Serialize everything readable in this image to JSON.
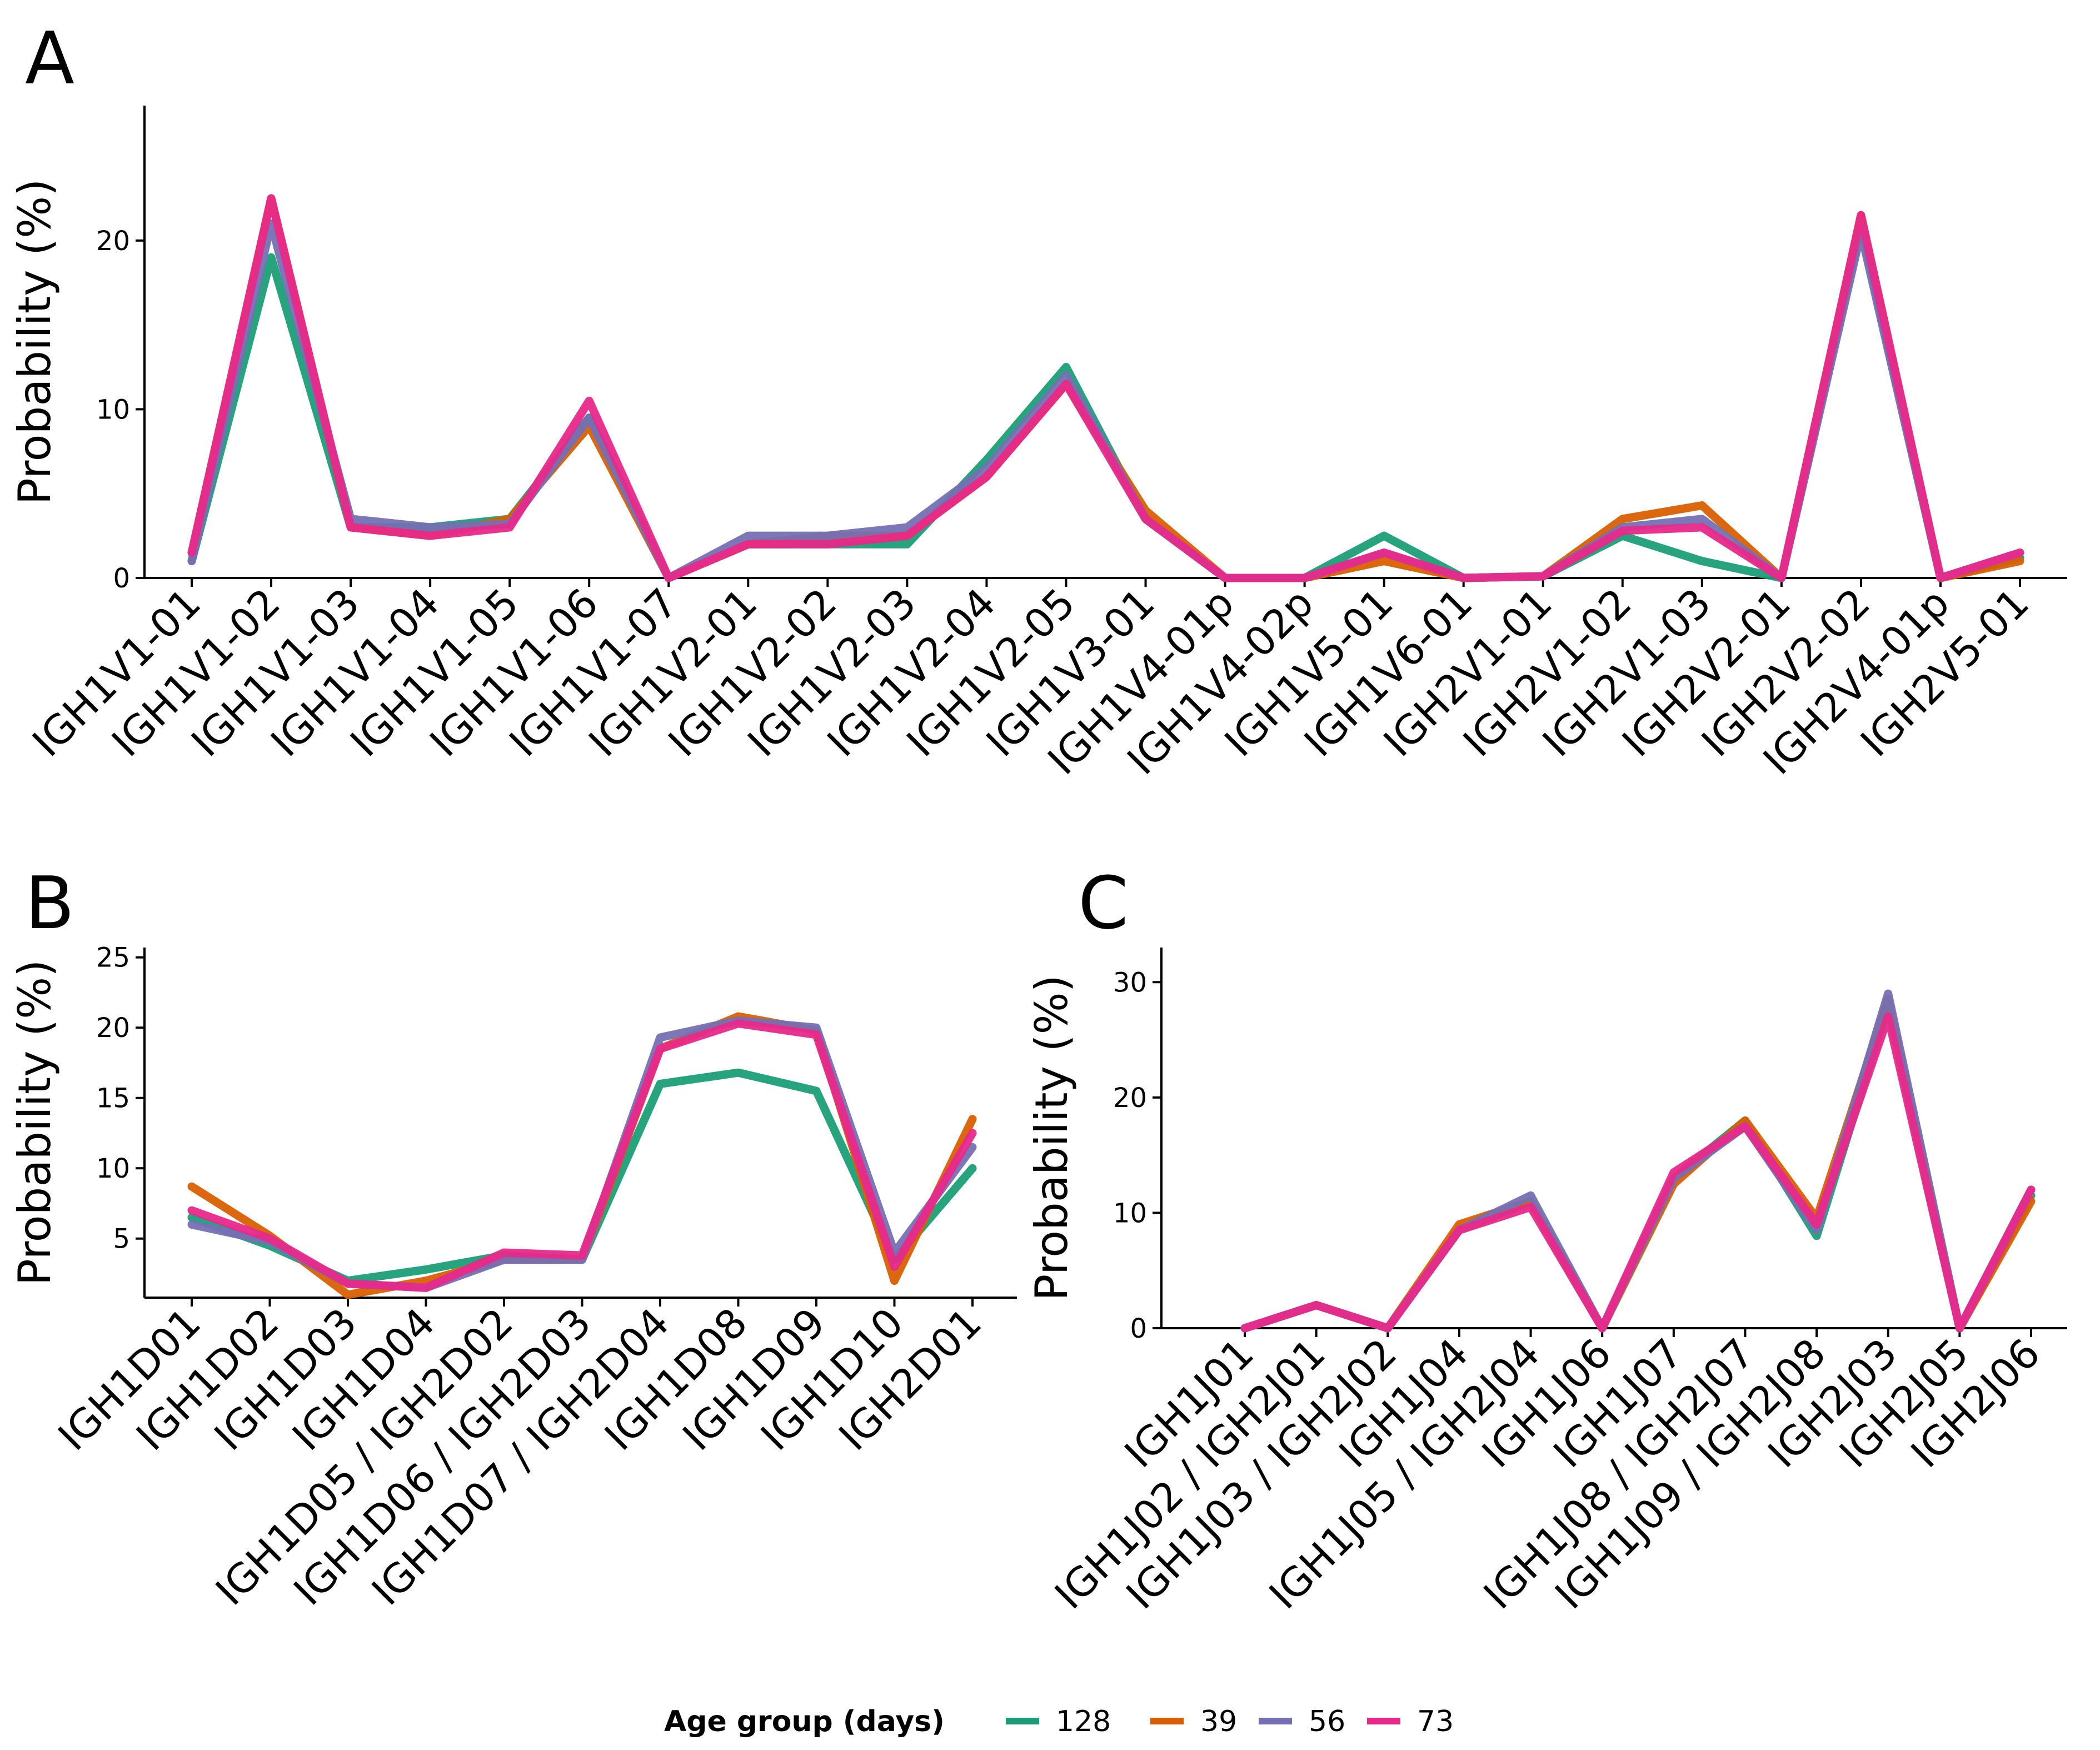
{
  "colors": {
    "128": "#1b9e77",
    "39": "#d95f02",
    "56": "#7570b3",
    "73": "#e7298a"
  },
  "legend": {
    "title": "Age group (days)",
    "groups": [
      "128",
      "39",
      "56",
      "73"
    ]
  },
  "chart_data": [
    {
      "panel": "A",
      "type": "line",
      "ylabel": "Probability (%)",
      "yticks": [
        0,
        10,
        20
      ],
      "ylim": [
        0,
        28
      ],
      "categories": [
        "IGH1V1-01",
        "IGH1V1-02",
        "IGH1V1-03",
        "IGH1V1-04",
        "IGH1V1-05",
        "IGH1V1-06",
        "IGH1V1-07",
        "IGH1V2-01",
        "IGH1V2-02",
        "IGH1V2-03",
        "IGH1V2-04",
        "IGH1V2-05",
        "IGH1V3-01",
        "IGH1V4-01p",
        "IGH1V4-02p",
        "IGH1V5-01",
        "IGH1V6-01",
        "IGH2V1-01",
        "IGH2V1-02",
        "IGH2V1-03",
        "IGH2V2-01",
        "IGH2V2-02",
        "IGH2V4-01p",
        "IGH2V5-01"
      ],
      "series": [
        {
          "name": "128",
          "values": [
            1.0,
            19.0,
            3.0,
            3.0,
            3.5,
            9.5,
            0,
            2.0,
            2.0,
            2.0,
            7.0,
            12.5,
            3.5,
            0,
            0,
            2.5,
            0,
            0.1,
            2.5,
            1.0,
            0,
            21.0,
            0,
            1.2
          ]
        },
        {
          "name": "39",
          "values": [
            1.5,
            22.5,
            3.0,
            2.5,
            3.5,
            9.0,
            0,
            2.0,
            2.5,
            2.5,
            6.0,
            11.5,
            4.0,
            0,
            0,
            1.0,
            0,
            0.1,
            3.5,
            4.3,
            0,
            21.5,
            0,
            1.0
          ]
        },
        {
          "name": "56",
          "values": [
            1.0,
            21.0,
            3.5,
            3.0,
            3.2,
            9.5,
            0,
            2.5,
            2.5,
            3.0,
            6.5,
            12.0,
            3.5,
            0,
            0,
            1.5,
            0,
            0.1,
            3.0,
            3.5,
            0,
            20.5,
            0,
            1.5
          ]
        },
        {
          "name": "73",
          "values": [
            1.5,
            22.5,
            3.0,
            2.5,
            3.0,
            10.5,
            0,
            2.0,
            2.0,
            2.5,
            6.0,
            11.5,
            3.5,
            0,
            0,
            1.5,
            0,
            0.1,
            2.8,
            3.0,
            0,
            21.5,
            0,
            1.5
          ]
        }
      ]
    },
    {
      "panel": "B",
      "type": "line",
      "ylabel": "Probability (%)",
      "yticks": [
        5,
        10,
        15,
        20,
        25
      ],
      "ylim": [
        0.8,
        25.7
      ],
      "categories": [
        "IGH1D01",
        "IGH1D02",
        "IGH1D03",
        "IGH1D04",
        "IGH1D05 / IGH2D02",
        "IGH1D06 / IGH2D03",
        "IGH1D07 / IGH2D04",
        "IGH1D08",
        "IGH1D09",
        "IGH1D10",
        "IGH2D01"
      ],
      "series": [
        {
          "name": "128",
          "values": [
            6.5,
            4.5,
            2.0,
            2.8,
            3.8,
            3.5,
            16.0,
            16.8,
            15.5,
            3.5,
            10.0
          ]
        },
        {
          "name": "39",
          "values": [
            8.7,
            5.2,
            1.0,
            2.0,
            3.5,
            3.5,
            18.5,
            20.8,
            19.8,
            2.0,
            13.5
          ]
        },
        {
          "name": "56",
          "values": [
            6.0,
            4.8,
            1.8,
            1.5,
            3.5,
            3.5,
            19.3,
            20.5,
            20.0,
            4.0,
            11.5
          ]
        },
        {
          "name": "73",
          "values": [
            7.0,
            5.0,
            1.8,
            1.5,
            4.0,
            3.8,
            18.5,
            20.3,
            19.5,
            3.0,
            12.5
          ]
        }
      ]
    },
    {
      "panel": "C",
      "type": "line",
      "ylabel": "Probability (%)",
      "yticks": [
        0,
        10,
        20,
        30
      ],
      "ylim": [
        0,
        33
      ],
      "categories": [
        "IGH1J01",
        "IGH1J02 / IGH2J01",
        "IGH1J03 / IGH2J02",
        "IGH1J04",
        "IGH1J05 / IGH2J04",
        "IGH1J06",
        "IGH1J07",
        "IGH1J08 / IGH2J07",
        "IGH1J09 / IGH2J08",
        "IGH2J03",
        "IGH2J05",
        "IGH2J06"
      ],
      "series": [
        {
          "name": "128",
          "values": [
            0,
            2.0,
            0,
            8.5,
            11.0,
            0,
            13.0,
            18.0,
            8.0,
            28.0,
            0,
            11.5
          ]
        },
        {
          "name": "39",
          "values": [
            0,
            2.0,
            0,
            9.0,
            11.0,
            0,
            12.5,
            18.0,
            9.5,
            28.5,
            0,
            11.0
          ]
        },
        {
          "name": "56",
          "values": [
            0,
            2.0,
            0,
            8.5,
            11.5,
            0,
            13.0,
            17.5,
            8.5,
            29.0,
            0,
            12.0
          ]
        },
        {
          "name": "73",
          "values": [
            0,
            2.0,
            0,
            8.5,
            10.5,
            0,
            13.5,
            17.5,
            9.0,
            27.0,
            0,
            12.0
          ]
        }
      ]
    }
  ]
}
